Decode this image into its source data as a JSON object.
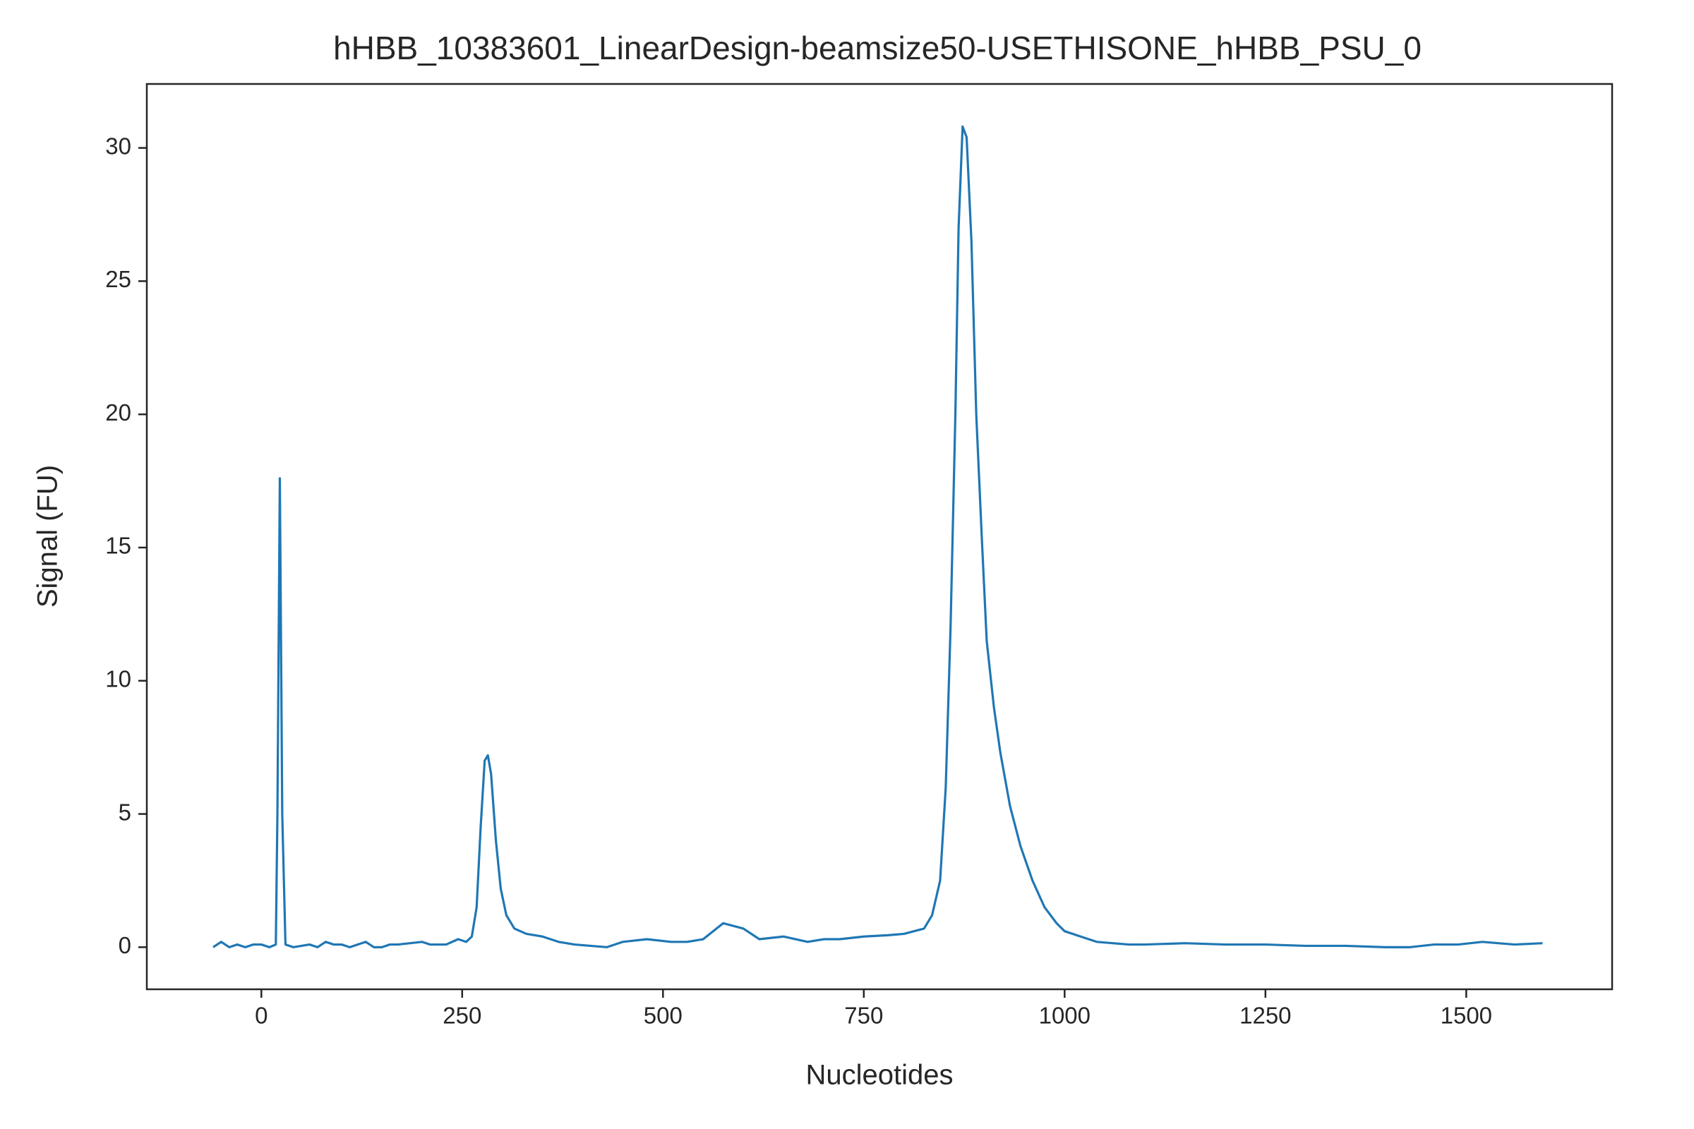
{
  "chart_data": {
    "type": "line",
    "title": "hHBB_10383601_LinearDesign-beamsize50-USETHISONE_hHBB_PSU_0",
    "x_label": "Nucleotides",
    "y_label": "Signal (FU)",
    "x": [
      -60,
      -50,
      -40,
      -30,
      -20,
      -10,
      0,
      10,
      18,
      20,
      23,
      26,
      30,
      40,
      60,
      70,
      80,
      90,
      100,
      110,
      120,
      130,
      140,
      150,
      160,
      170,
      200,
      210,
      230,
      245,
      255,
      262,
      268,
      273,
      278,
      282,
      286,
      292,
      298,
      305,
      315,
      330,
      350,
      370,
      390,
      410,
      430,
      450,
      480,
      510,
      530,
      550,
      575,
      600,
      620,
      650,
      680,
      700,
      720,
      750,
      780,
      800,
      825,
      835,
      845,
      852,
      858,
      864,
      868,
      873,
      878,
      884,
      890,
      897,
      903,
      912,
      920,
      932,
      945,
      960,
      975,
      990,
      1000,
      1020,
      1040,
      1060,
      1080,
      1100,
      1150,
      1200,
      1250,
      1300,
      1350,
      1400,
      1430,
      1460,
      1490,
      1520,
      1560,
      1595
    ],
    "series": [
      {
        "name": "signal",
        "color": "#1f77b4",
        "values": [
          0,
          0.2,
          0,
          0.1,
          0,
          0.1,
          0.1,
          0,
          0.1,
          5,
          17.6,
          5,
          0.1,
          0,
          0.1,
          0,
          0.2,
          0.1,
          0.1,
          0,
          0.1,
          0.2,
          0,
          0,
          0.1,
          0.1,
          0.2,
          0.1,
          0.1,
          0.3,
          0.2,
          0.4,
          1.5,
          4.5,
          7.0,
          7.2,
          6.5,
          4.0,
          2.2,
          1.2,
          0.7,
          0.5,
          0.4,
          0.2,
          0.1,
          0.05,
          0,
          0.2,
          0.3,
          0.2,
          0.2,
          0.3,
          0.9,
          0.7,
          0.3,
          0.4,
          0.2,
          0.3,
          0.3,
          0.4,
          0.45,
          0.5,
          0.7,
          1.2,
          2.5,
          6,
          12,
          20,
          27,
          30.8,
          30.4,
          26.5,
          20,
          15.3,
          11.5,
          9,
          7.3,
          5.3,
          3.8,
          2.5,
          1.5,
          0.9,
          0.6,
          0.4,
          0.2,
          0.15,
          0.1,
          0.1,
          0.15,
          0.1,
          0.1,
          0.05,
          0.05,
          0,
          0,
          0.1,
          0.1,
          0.2,
          0.1,
          0.15
        ]
      }
    ],
    "xlim": [
      -142.6,
      1681.6
    ],
    "ylim": [
      -1.58,
      32.4
    ],
    "xticks": [
      0,
      250,
      500,
      750,
      1000,
      1250,
      1500
    ],
    "yticks": [
      0,
      5,
      10,
      15,
      20,
      25,
      30
    ],
    "grid": false
  }
}
